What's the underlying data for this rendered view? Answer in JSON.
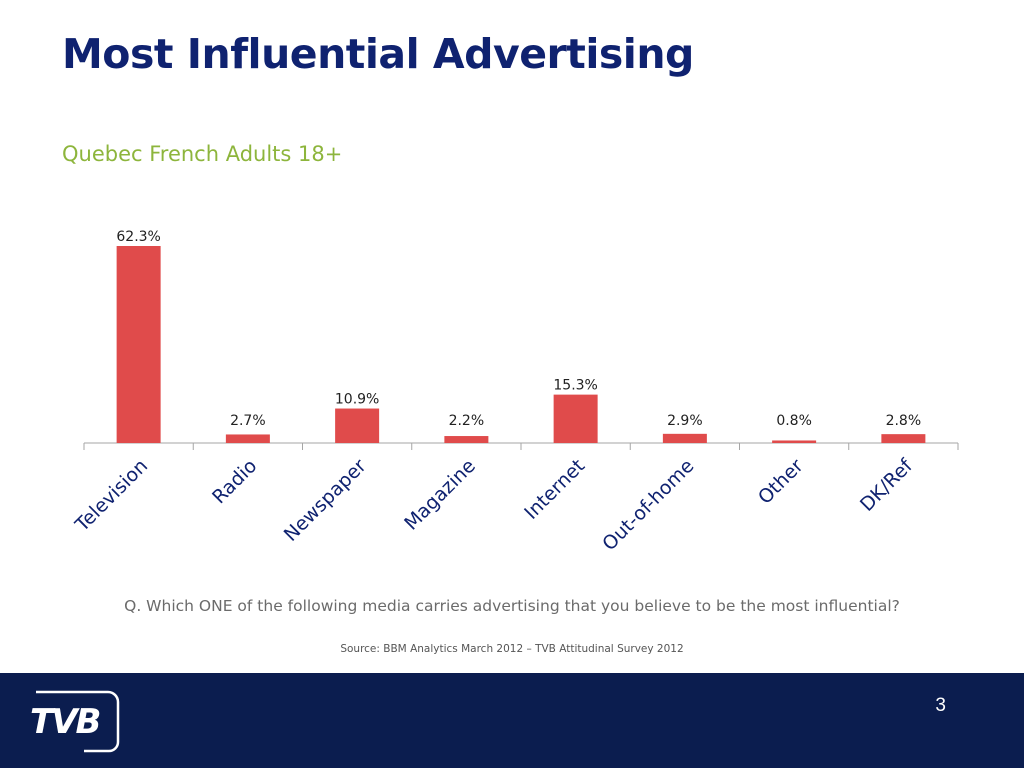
{
  "slide": {
    "title": "Most Influential Advertising",
    "subtitle": "Quebec French Adults 18+",
    "question": "Q. Which ONE of the following media carries advertising that you believe to be the most influential?",
    "source": "Source: BBM Analytics March 2012 – TVB Attitudinal Survey 2012",
    "page_number": "3",
    "logo_text": "TVB"
  },
  "colors": {
    "title": "#0f2270",
    "subtitle": "#8db53c",
    "bar": "#e04b4b",
    "footer": "#0b1d4f"
  },
  "chart_data": {
    "type": "bar",
    "categories": [
      "Television",
      "Radio",
      "Newspaper",
      "Magazine",
      "Internet",
      "Out-of-home",
      "Other",
      "DK/Ref"
    ],
    "values": [
      62.3,
      2.7,
      10.9,
      2.2,
      15.3,
      2.9,
      0.8,
      2.8
    ],
    "data_labels": [
      "62.3%",
      "2.7%",
      "10.9%",
      "2.2%",
      "15.3%",
      "2.9%",
      "0.8%",
      "2.8%"
    ],
    "title": "",
    "xlabel": "",
    "ylabel": "",
    "ylim": [
      0,
      70
    ],
    "grid": false,
    "legend": "none"
  }
}
